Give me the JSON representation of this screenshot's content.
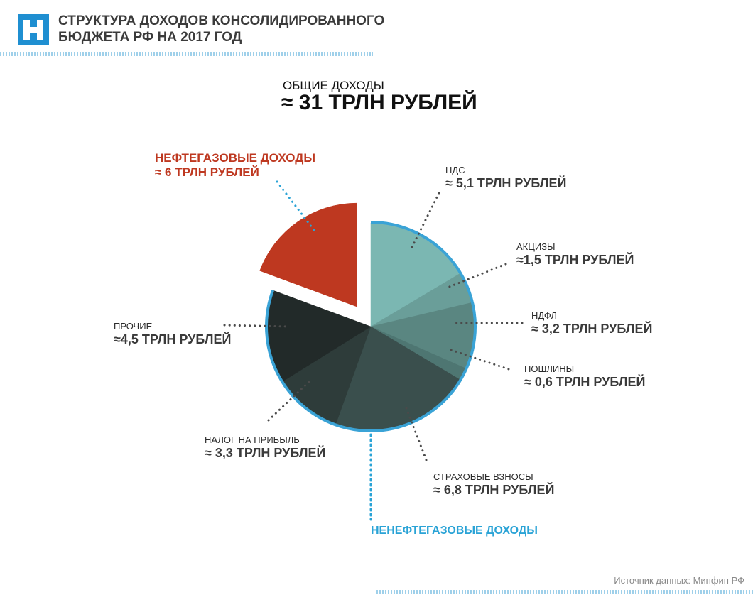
{
  "header": {
    "title_lines": [
      "СТРУКТУРА ДОХОДОВ КОНСОЛИДИРОВАННОГО",
      "БЮДЖЕТА РФ НА 2017 ГОД"
    ]
  },
  "chart_data": {
    "type": "pie",
    "total_label": "ОБЩИЕ ДОХОДЫ",
    "total_value_label": "≈ 31 ТРЛН РУБЛЕЙ",
    "categories": [
      "НДС",
      "АКЦИЗЫ",
      "НДФЛ",
      "ПОШЛИНЫ",
      "СТРАХОВЫЕ ВЗНОСЫ",
      "НАЛОГ НА ПРИБЫЛЬ",
      "ПРОЧИЕ",
      "НЕФТЕГАЗОВЫЕ ДОХОДЫ"
    ],
    "values": [
      5.1,
      1.5,
      3.2,
      0.6,
      6.8,
      3.3,
      4.5,
      6
    ],
    "value_labels": [
      "≈ 5,1 ТРЛН РУБЛЕЙ",
      "≈1,5 ТРЛН РУБЛЕЙ",
      "≈ 3,2 ТРЛН РУБЛЕЙ",
      "≈ 0,6 ТРЛН РУБЛЕЙ",
      "≈ 6,8 ТРЛН РУБЛЕЙ",
      "≈ 3,3 ТРЛН РУБЛЕЙ",
      "≈4,5 ТРЛН РУБЛЕЙ",
      "≈ 6 ТРЛН РУБЛЕЙ"
    ],
    "colors": [
      "#7bb7b2",
      "#6a9e99",
      "#5a8681",
      "#4e7672",
      "#3a4f4d",
      "#2e3c3a",
      "#222a29",
      "#be3820"
    ],
    "group_label": "НЕНЕФТЕГАЗОВЫЕ ДОХОДЫ"
  },
  "source": "Источник данных: Минфин РФ"
}
